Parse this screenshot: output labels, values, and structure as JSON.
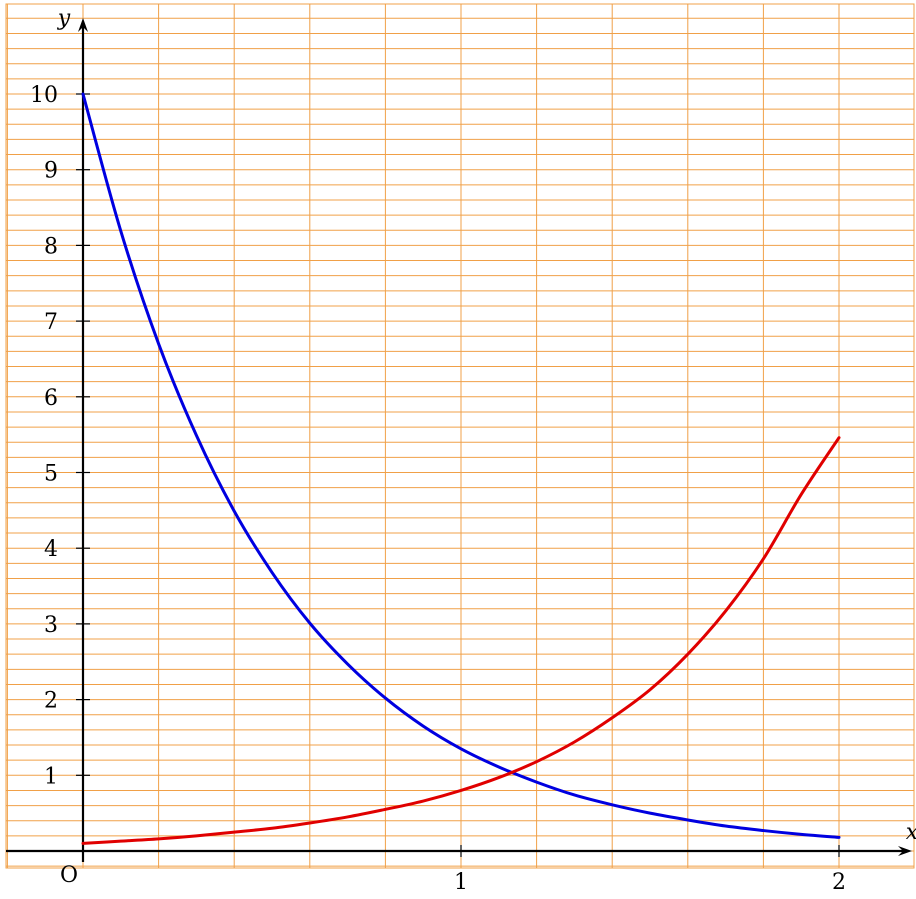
{
  "chart_data": {
    "type": "line",
    "title": "",
    "xlabel": "x",
    "ylabel": "y",
    "origin_label": "O",
    "xlim": [
      0,
      2
    ],
    "ylim": [
      0,
      11
    ],
    "x_ticks": [
      "1",
      "2"
    ],
    "y_ticks": [
      "1",
      "2",
      "3",
      "4",
      "5",
      "6",
      "7",
      "8",
      "9",
      "10"
    ],
    "grid": true,
    "grid_color": "#f0a048",
    "axis_color": "#000000",
    "series": [
      {
        "color": "#0000e0",
        "x": [
          0,
          0.1,
          0.2,
          0.3,
          0.4,
          0.5,
          0.6,
          0.7,
          0.8,
          0.9,
          1.0,
          1.1,
          1.2,
          1.3,
          1.4,
          1.5,
          1.6,
          1.7,
          1.8,
          1.9,
          2.0
        ],
        "y": [
          10,
          8.19,
          6.7,
          5.49,
          4.49,
          3.68,
          3.01,
          2.47,
          2.02,
          1.65,
          1.35,
          1.11,
          0.91,
          0.74,
          0.61,
          0.5,
          0.41,
          0.33,
          0.27,
          0.22,
          0.18
        ]
      },
      {
        "color": "#e00000",
        "x": [
          0,
          0.1,
          0.2,
          0.3,
          0.4,
          0.5,
          0.6,
          0.7,
          0.8,
          0.9,
          1.0,
          1.1,
          1.2,
          1.3,
          1.4,
          1.5,
          1.6,
          1.7,
          1.8,
          1.9,
          2.0
        ],
        "y": [
          0.1,
          0.13,
          0.16,
          0.2,
          0.25,
          0.3,
          0.37,
          0.45,
          0.55,
          0.66,
          0.8,
          0.97,
          1.18,
          1.44,
          1.76,
          2.13,
          2.6,
          3.17,
          3.86,
          4.71,
          5.46
        ]
      }
    ]
  }
}
